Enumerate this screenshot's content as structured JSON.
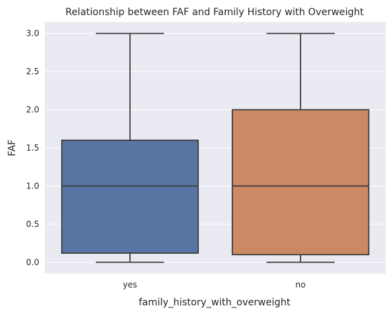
{
  "chart_data": {
    "type": "box",
    "title": "Relationship between FAF and Family History with Overweight",
    "xlabel": "family_history_with_overweight",
    "ylabel": "FAF",
    "ylim": [
      -0.15,
      3.15
    ],
    "yticks": [
      0.0,
      0.5,
      1.0,
      1.5,
      2.0,
      2.5,
      3.0
    ],
    "ytick_labels": [
      "0.0",
      "0.5",
      "1.0",
      "1.5",
      "2.0",
      "2.5",
      "3.0"
    ],
    "grid": true,
    "categories": [
      "yes",
      "no"
    ],
    "boxes": [
      {
        "category": "yes",
        "whisker_low": 0.0,
        "q1": 0.12,
        "median": 1.0,
        "q3": 1.6,
        "whisker_high": 3.0,
        "color": "#5875a4"
      },
      {
        "category": "no",
        "whisker_low": 0.0,
        "q1": 0.1,
        "median": 1.0,
        "q3": 2.0,
        "whisker_high": 3.0,
        "color": "#cc8963"
      }
    ]
  },
  "colors": {
    "background": "#eaeaf2",
    "grid": "#ffffff",
    "line": "#3f3f3f"
  }
}
